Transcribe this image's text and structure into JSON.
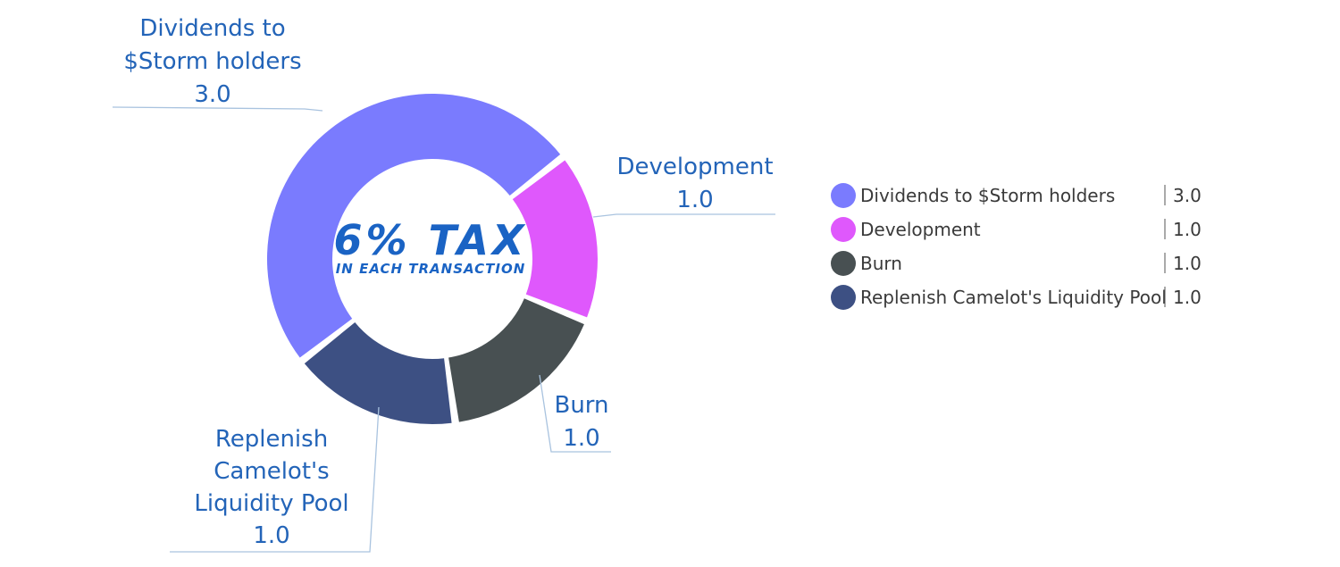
{
  "chart_data": {
    "type": "pie",
    "variant": "donut",
    "center_text": {
      "title": "6% TAX",
      "subtitle": "IN EACH TRANSACTION"
    },
    "categories": [
      "Dividends to $Storm holders",
      "Development",
      "Burn",
      "Replenish Camelot's Liquidity Pool"
    ],
    "values": [
      3.0,
      1.0,
      1.0,
      1.0
    ],
    "value_labels": [
      "3.0",
      "1.0",
      "1.0",
      "1.0"
    ],
    "colors": [
      "#7a7bfe",
      "#df58fc",
      "#485052",
      "#3d5083"
    ],
    "callout_lines": [
      [
        "Dividends to",
        "$Storm holders",
        "3.0"
      ],
      [
        "Development",
        "1.0"
      ],
      [
        "Burn",
        "1.0"
      ],
      [
        "Replenish",
        "Camelot's",
        "Liquidity Pool",
        "1.0"
      ]
    ],
    "legend": {
      "position": "right",
      "entries": [
        {
          "label": "Dividends to $Storm holders",
          "value": "3.0"
        },
        {
          "label": "Development",
          "value": "1.0"
        },
        {
          "label": "Burn",
          "value": "1.0"
        },
        {
          "label": "Replenish Camelot's Liquidity Pool",
          "value": "1.0"
        }
      ]
    }
  }
}
